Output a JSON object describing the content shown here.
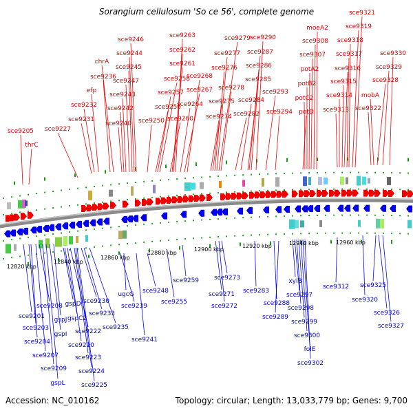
{
  "title": "Sorangium cellulosum 'So ce 56', complete genome",
  "footer": {
    "accession": "Accession: NC_010162",
    "stats": "Topology: circular; Length: 13,033,779 bp; Genes: 9,700"
  },
  "colors": {
    "forward": "#ee0000",
    "reverse": "#0000ee",
    "forward_label": "#d40000",
    "reverse_label": "#0000cc",
    "backbone": "#888888",
    "track_dot": "#22aa22"
  },
  "scale": {
    "ticks": [
      {
        "label": "12820 kbp",
        "kbp": 12820
      },
      {
        "label": "12840 kbp",
        "kbp": 12840
      },
      {
        "label": "12860 kbp",
        "kbp": 12860
      },
      {
        "label": "12880 kbp",
        "kbp": 12880
      },
      {
        "label": "12900 kbp",
        "kbp": 12900
      },
      {
        "label": "12920 kbp",
        "kbp": 12920
      },
      {
        "label": "12940 kbp",
        "kbp": 12940
      },
      {
        "label": "12960 kbp",
        "kbp": 12960
      }
    ]
  },
  "forward_genes": [
    {
      "label": "sce9205"
    },
    {
      "label": "thrC"
    },
    {
      "label": "sce9227"
    },
    {
      "label": "sce9231"
    },
    {
      "label": "sce9232"
    },
    {
      "label": "efp"
    },
    {
      "label": "sce9236"
    },
    {
      "label": "chrA"
    },
    {
      "label": "sce9240"
    },
    {
      "label": "sce9242"
    },
    {
      "label": "sce9243"
    },
    {
      "label": "sce9247"
    },
    {
      "label": "sce9245"
    },
    {
      "label": "sce9244"
    },
    {
      "label": "sce9246"
    },
    {
      "label": "sce9250"
    },
    {
      "label": "sce9256"
    },
    {
      "label": "sce9257"
    },
    {
      "label": "sce9258"
    },
    {
      "label": "sce9260"
    },
    {
      "label": "sce9261"
    },
    {
      "label": "sce9262"
    },
    {
      "label": "sce9263"
    },
    {
      "label": "sce9264"
    },
    {
      "label": "sce9267"
    },
    {
      "label": "sce9268"
    },
    {
      "label": "sce9274"
    },
    {
      "label": "sce9275"
    },
    {
      "label": "sce9276"
    },
    {
      "label": "sce9277"
    },
    {
      "label": "sce9279"
    },
    {
      "label": "sce9278"
    },
    {
      "label": "sce9282"
    },
    {
      "label": "sce9284"
    },
    {
      "label": "sce9285"
    },
    {
      "label": "sce9286"
    },
    {
      "label": "sce9287"
    },
    {
      "label": "sce9290"
    },
    {
      "label": "sce9293"
    },
    {
      "label": "sce9294"
    },
    {
      "label": "potD"
    },
    {
      "label": "potC2"
    },
    {
      "label": "potB2"
    },
    {
      "label": "potA2"
    },
    {
      "label": "sce9307"
    },
    {
      "label": "sce9308"
    },
    {
      "label": "moeA2"
    },
    {
      "label": "sce9313"
    },
    {
      "label": "sce9314"
    },
    {
      "label": "sce9315"
    },
    {
      "label": "sce9316"
    },
    {
      "label": "sce9317"
    },
    {
      "label": "sce9318"
    },
    {
      "label": "sce9319"
    },
    {
      "label": "sce9321"
    },
    {
      "label": "sce9322"
    },
    {
      "label": "mobA"
    },
    {
      "label": "sce9328"
    },
    {
      "label": "sce9329"
    },
    {
      "label": "sce9330"
    }
  ],
  "reverse_genes": [
    {
      "label": "sce9201"
    },
    {
      "label": "sce9203"
    },
    {
      "label": "sce9204"
    },
    {
      "label": "sce9207"
    },
    {
      "label": "sce9208"
    },
    {
      "label": "sce9209"
    },
    {
      "label": "gspL"
    },
    {
      "label": "gspI"
    },
    {
      "label": "gspJ"
    },
    {
      "label": "gspD"
    },
    {
      "label": "gspC2"
    },
    {
      "label": "sce9220"
    },
    {
      "label": "sce9222"
    },
    {
      "label": "sce9223"
    },
    {
      "label": "sce9224"
    },
    {
      "label": "sce9225"
    },
    {
      "label": "sce9230"
    },
    {
      "label": "sce9233"
    },
    {
      "label": "sce9235"
    },
    {
      "label": "sce9239"
    },
    {
      "label": "ugcG"
    },
    {
      "label": "sce9241"
    },
    {
      "label": "sce9248"
    },
    {
      "label": "sce9255"
    },
    {
      "label": "sce9259"
    },
    {
      "label": "sce9271"
    },
    {
      "label": "sce9272"
    },
    {
      "label": "sce9273"
    },
    {
      "label": "sce9283"
    },
    {
      "label": "sce9288"
    },
    {
      "label": "sce9289"
    },
    {
      "label": "xylB"
    },
    {
      "label": "sce9297"
    },
    {
      "label": "sce9298"
    },
    {
      "label": "sce9299"
    },
    {
      "label": "sce9300"
    },
    {
      "label": "folE"
    },
    {
      "label": "sce9302"
    },
    {
      "label": "sce9312"
    },
    {
      "label": "sce9320"
    },
    {
      "label": "sce9325"
    },
    {
      "label": "sce9326"
    },
    {
      "label": "sce9327"
    }
  ]
}
